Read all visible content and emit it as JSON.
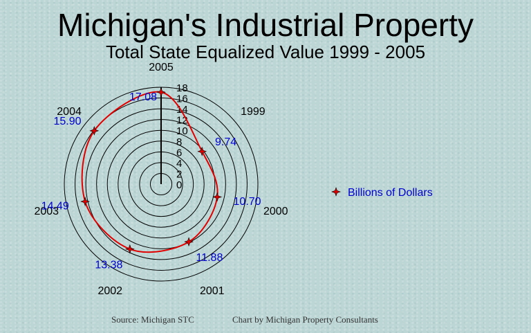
{
  "title": "Michigan's Industrial Property",
  "subtitle": "Total State Equalized Value  1999 - 2005",
  "footer": {
    "source": "Source:  Michigan STC",
    "credit": "Chart by Michigan Property Consultants"
  },
  "chart_data": {
    "type": "radar",
    "categories": [
      "2005",
      "1999",
      "2000",
      "2001",
      "2002",
      "2003",
      "2004"
    ],
    "series": [
      {
        "name": "Billions of Dollars",
        "values": [
          17.08,
          9.74,
          10.7,
          11.88,
          13.38,
          14.49,
          15.9
        ],
        "labels": [
          "17.08",
          "9.74",
          "10.70",
          "11.88",
          "13.38",
          "14.49",
          "15.90"
        ],
        "color": "#e00000",
        "marker": "red-diamond-star"
      }
    ],
    "radial_ticks": [
      "0",
      "2",
      "4",
      "6",
      "8",
      "10",
      "12",
      "14",
      "16",
      "18"
    ],
    "rlim": [
      0,
      18
    ],
    "grid": true,
    "legend": "right",
    "colors": {
      "line": "#e00000",
      "label": "#0000cc",
      "grid": "#000000"
    }
  }
}
